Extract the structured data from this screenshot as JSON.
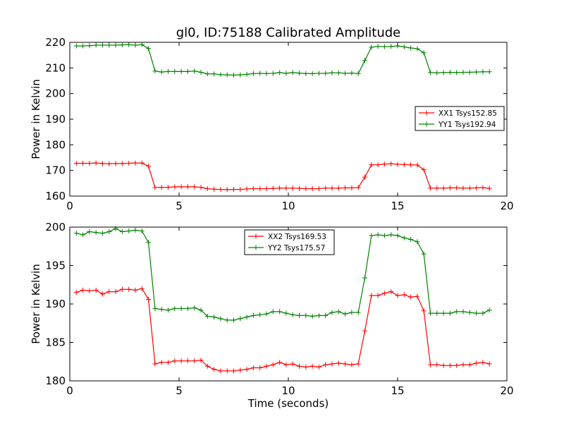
{
  "chart_data": [
    {
      "type": "line",
      "title": "gl0, ID:75188 Calibrated Amplitude",
      "xlabel": "",
      "ylabel": "Power in Kelvin",
      "xlim": [
        0,
        20
      ],
      "ylim": [
        160,
        220
      ],
      "xticks": [
        "0",
        "5",
        "10",
        "15",
        "20"
      ],
      "yticks": [
        "160",
        "170",
        "180",
        "190",
        "200",
        "210",
        "220"
      ],
      "legend_position": "right",
      "x": [
        0.3,
        0.6,
        0.9,
        1.2,
        1.5,
        1.8,
        2.1,
        2.4,
        2.7,
        3.0,
        3.3,
        3.6,
        3.9,
        4.2,
        4.5,
        4.8,
        5.1,
        5.4,
        5.7,
        6.0,
        6.3,
        6.6,
        6.9,
        7.2,
        7.5,
        7.8,
        8.1,
        8.4,
        8.7,
        9.0,
        9.3,
        9.6,
        9.9,
        10.2,
        10.5,
        10.8,
        11.1,
        11.4,
        11.7,
        12.0,
        12.3,
        12.6,
        12.9,
        13.2,
        13.5,
        13.8,
        14.1,
        14.4,
        14.7,
        15.0,
        15.3,
        15.6,
        15.9,
        16.2,
        16.5,
        16.8,
        17.1,
        17.4,
        17.7,
        18.0,
        18.3,
        18.6,
        18.9,
        19.2
      ],
      "series": [
        {
          "name": "XX1 Tsys152.85",
          "color": "#ff0000",
          "values": [
            172.8,
            172.8,
            172.8,
            172.9,
            172.7,
            172.6,
            172.7,
            172.7,
            172.8,
            172.9,
            172.9,
            171.7,
            163.3,
            163.4,
            163.4,
            163.6,
            163.6,
            163.6,
            163.6,
            163.4,
            162.9,
            162.7,
            162.6,
            162.5,
            162.6,
            162.6,
            162.8,
            162.9,
            162.9,
            162.9,
            163.0,
            163.1,
            163.1,
            163.1,
            163.0,
            162.9,
            162.9,
            162.9,
            163.1,
            163.1,
            163.1,
            163.2,
            163.2,
            163.3,
            167.4,
            172.2,
            172.2,
            172.5,
            172.6,
            172.4,
            172.3,
            172.2,
            172.1,
            170.3,
            163.1,
            163.1,
            163.1,
            163.2,
            163.2,
            163.1,
            163.1,
            163.2,
            163.3,
            163.0
          ]
        },
        {
          "name": "YY1 Tsys192.94",
          "color": "#008000",
          "values": [
            218.6,
            218.6,
            218.7,
            218.9,
            218.9,
            218.9,
            218.9,
            219.0,
            219.1,
            218.9,
            219.1,
            217.6,
            208.8,
            208.4,
            208.6,
            208.6,
            208.6,
            208.6,
            208.8,
            208.3,
            207.7,
            207.7,
            207.4,
            207.3,
            207.2,
            207.3,
            207.5,
            207.8,
            207.9,
            207.8,
            207.9,
            208.2,
            207.9,
            208.2,
            208.0,
            207.8,
            207.8,
            207.9,
            207.9,
            208.1,
            208.1,
            207.9,
            208.0,
            207.8,
            212.9,
            218.1,
            218.4,
            218.3,
            218.4,
            218.6,
            218.2,
            217.8,
            217.5,
            215.9,
            208.2,
            208.1,
            208.2,
            208.3,
            208.2,
            208.3,
            208.3,
            208.4,
            208.5,
            208.5
          ]
        }
      ]
    },
    {
      "type": "line",
      "title": "",
      "xlabel": "Time (seconds)",
      "ylabel": "Power in Kelvin",
      "xlim": [
        0,
        20
      ],
      "ylim": [
        180,
        200
      ],
      "xticks": [
        "0",
        "5",
        "10",
        "15",
        "20"
      ],
      "yticks": [
        "180",
        "185",
        "190",
        "195",
        "200"
      ],
      "legend_position": "upper center",
      "x": [
        0.3,
        0.6,
        0.9,
        1.2,
        1.5,
        1.8,
        2.1,
        2.4,
        2.7,
        3.0,
        3.3,
        3.6,
        3.9,
        4.2,
        4.5,
        4.8,
        5.1,
        5.4,
        5.7,
        6.0,
        6.3,
        6.6,
        6.9,
        7.2,
        7.5,
        7.8,
        8.1,
        8.4,
        8.7,
        9.0,
        9.3,
        9.6,
        9.9,
        10.2,
        10.5,
        10.8,
        11.1,
        11.4,
        11.7,
        12.0,
        12.3,
        12.6,
        12.9,
        13.2,
        13.5,
        13.8,
        14.1,
        14.4,
        14.7,
        15.0,
        15.3,
        15.6,
        15.9,
        16.2,
        16.5,
        16.8,
        17.1,
        17.4,
        17.7,
        18.0,
        18.3,
        18.6,
        18.9,
        19.2
      ],
      "series": [
        {
          "name": "XX2 Tsys169.53",
          "color": "#ff0000",
          "values": [
            191.5,
            191.8,
            191.7,
            191.8,
            191.3,
            191.6,
            191.6,
            191.9,
            191.9,
            191.8,
            192.0,
            190.6,
            182.2,
            182.4,
            182.4,
            182.6,
            182.6,
            182.6,
            182.6,
            182.7,
            181.9,
            181.5,
            181.3,
            181.3,
            181.3,
            181.4,
            181.5,
            181.7,
            181.7,
            181.9,
            182.1,
            182.4,
            182.1,
            182.2,
            181.9,
            181.8,
            181.9,
            181.8,
            182.1,
            182.2,
            182.3,
            182.2,
            182.1,
            182.2,
            186.5,
            191.1,
            191.1,
            191.4,
            191.6,
            191.1,
            191.2,
            190.9,
            191.0,
            189.1,
            182.1,
            182.1,
            182.0,
            182.0,
            182.0,
            182.1,
            182.1,
            182.3,
            182.4,
            182.2
          ]
        },
        {
          "name": "YY2 Tsys175.57",
          "color": "#008000",
          "values": [
            199.2,
            199.0,
            199.4,
            199.3,
            199.2,
            199.4,
            199.8,
            199.4,
            199.5,
            199.6,
            199.5,
            198.0,
            189.4,
            189.3,
            189.2,
            189.4,
            189.4,
            189.4,
            189.5,
            189.2,
            188.4,
            188.3,
            188.1,
            187.9,
            187.9,
            188.1,
            188.3,
            188.5,
            188.6,
            188.7,
            189.0,
            189.0,
            188.8,
            188.6,
            188.5,
            188.5,
            188.4,
            188.5,
            188.5,
            188.9,
            189.0,
            188.7,
            188.9,
            188.9,
            193.4,
            198.9,
            199.0,
            198.9,
            199.0,
            198.9,
            198.6,
            198.4,
            198.1,
            196.5,
            188.8,
            188.8,
            188.8,
            188.8,
            189.0,
            189.0,
            188.9,
            188.8,
            188.8,
            189.2
          ]
        }
      ]
    }
  ]
}
